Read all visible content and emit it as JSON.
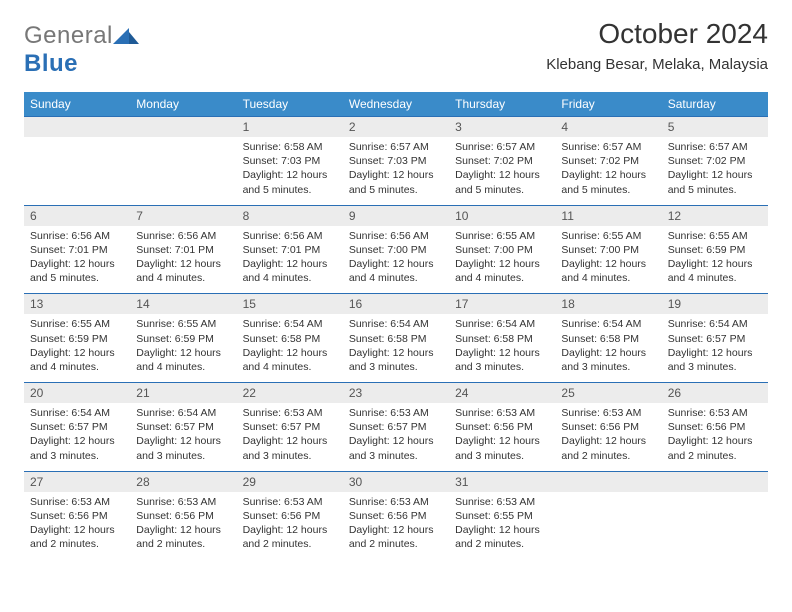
{
  "logo": {
    "textGray": "General",
    "textBlue": "Blue"
  },
  "title": "October 2024",
  "location": "Klebang Besar, Melaka, Malaysia",
  "colors": {
    "headerBg": "#3a8bc9",
    "headerText": "#ffffff",
    "numBg": "#ececec",
    "numText": "#555555",
    "bodyText": "#333333",
    "ruleColor": "#2a6fb5",
    "logoGray": "#777777",
    "logoBlue": "#2a6fb5"
  },
  "fonts": {
    "title_pt": 28,
    "location_pt": 15,
    "header_pt": 12,
    "daynum_pt": 12,
    "body_pt": 10.5
  },
  "daysOfWeek": [
    "Sunday",
    "Monday",
    "Tuesday",
    "Wednesday",
    "Thursday",
    "Friday",
    "Saturday"
  ],
  "weeks": [
    [
      {
        "num": "",
        "lines": []
      },
      {
        "num": "",
        "lines": []
      },
      {
        "num": "1",
        "lines": [
          "Sunrise: 6:58 AM",
          "Sunset: 7:03 PM",
          "Daylight: 12 hours and 5 minutes."
        ]
      },
      {
        "num": "2",
        "lines": [
          "Sunrise: 6:57 AM",
          "Sunset: 7:03 PM",
          "Daylight: 12 hours and 5 minutes."
        ]
      },
      {
        "num": "3",
        "lines": [
          "Sunrise: 6:57 AM",
          "Sunset: 7:02 PM",
          "Daylight: 12 hours and 5 minutes."
        ]
      },
      {
        "num": "4",
        "lines": [
          "Sunrise: 6:57 AM",
          "Sunset: 7:02 PM",
          "Daylight: 12 hours and 5 minutes."
        ]
      },
      {
        "num": "5",
        "lines": [
          "Sunrise: 6:57 AM",
          "Sunset: 7:02 PM",
          "Daylight: 12 hours and 5 minutes."
        ]
      }
    ],
    [
      {
        "num": "6",
        "lines": [
          "Sunrise: 6:56 AM",
          "Sunset: 7:01 PM",
          "Daylight: 12 hours and 5 minutes."
        ]
      },
      {
        "num": "7",
        "lines": [
          "Sunrise: 6:56 AM",
          "Sunset: 7:01 PM",
          "Daylight: 12 hours and 4 minutes."
        ]
      },
      {
        "num": "8",
        "lines": [
          "Sunrise: 6:56 AM",
          "Sunset: 7:01 PM",
          "Daylight: 12 hours and 4 minutes."
        ]
      },
      {
        "num": "9",
        "lines": [
          "Sunrise: 6:56 AM",
          "Sunset: 7:00 PM",
          "Daylight: 12 hours and 4 minutes."
        ]
      },
      {
        "num": "10",
        "lines": [
          "Sunrise: 6:55 AM",
          "Sunset: 7:00 PM",
          "Daylight: 12 hours and 4 minutes."
        ]
      },
      {
        "num": "11",
        "lines": [
          "Sunrise: 6:55 AM",
          "Sunset: 7:00 PM",
          "Daylight: 12 hours and 4 minutes."
        ]
      },
      {
        "num": "12",
        "lines": [
          "Sunrise: 6:55 AM",
          "Sunset: 6:59 PM",
          "Daylight: 12 hours and 4 minutes."
        ]
      }
    ],
    [
      {
        "num": "13",
        "lines": [
          "Sunrise: 6:55 AM",
          "Sunset: 6:59 PM",
          "Daylight: 12 hours and 4 minutes."
        ]
      },
      {
        "num": "14",
        "lines": [
          "Sunrise: 6:55 AM",
          "Sunset: 6:59 PM",
          "Daylight: 12 hours and 4 minutes."
        ]
      },
      {
        "num": "15",
        "lines": [
          "Sunrise: 6:54 AM",
          "Sunset: 6:58 PM",
          "Daylight: 12 hours and 4 minutes."
        ]
      },
      {
        "num": "16",
        "lines": [
          "Sunrise: 6:54 AM",
          "Sunset: 6:58 PM",
          "Daylight: 12 hours and 3 minutes."
        ]
      },
      {
        "num": "17",
        "lines": [
          "Sunrise: 6:54 AM",
          "Sunset: 6:58 PM",
          "Daylight: 12 hours and 3 minutes."
        ]
      },
      {
        "num": "18",
        "lines": [
          "Sunrise: 6:54 AM",
          "Sunset: 6:58 PM",
          "Daylight: 12 hours and 3 minutes."
        ]
      },
      {
        "num": "19",
        "lines": [
          "Sunrise: 6:54 AM",
          "Sunset: 6:57 PM",
          "Daylight: 12 hours and 3 minutes."
        ]
      }
    ],
    [
      {
        "num": "20",
        "lines": [
          "Sunrise: 6:54 AM",
          "Sunset: 6:57 PM",
          "Daylight: 12 hours and 3 minutes."
        ]
      },
      {
        "num": "21",
        "lines": [
          "Sunrise: 6:54 AM",
          "Sunset: 6:57 PM",
          "Daylight: 12 hours and 3 minutes."
        ]
      },
      {
        "num": "22",
        "lines": [
          "Sunrise: 6:53 AM",
          "Sunset: 6:57 PM",
          "Daylight: 12 hours and 3 minutes."
        ]
      },
      {
        "num": "23",
        "lines": [
          "Sunrise: 6:53 AM",
          "Sunset: 6:57 PM",
          "Daylight: 12 hours and 3 minutes."
        ]
      },
      {
        "num": "24",
        "lines": [
          "Sunrise: 6:53 AM",
          "Sunset: 6:56 PM",
          "Daylight: 12 hours and 3 minutes."
        ]
      },
      {
        "num": "25",
        "lines": [
          "Sunrise: 6:53 AM",
          "Sunset: 6:56 PM",
          "Daylight: 12 hours and 2 minutes."
        ]
      },
      {
        "num": "26",
        "lines": [
          "Sunrise: 6:53 AM",
          "Sunset: 6:56 PM",
          "Daylight: 12 hours and 2 minutes."
        ]
      }
    ],
    [
      {
        "num": "27",
        "lines": [
          "Sunrise: 6:53 AM",
          "Sunset: 6:56 PM",
          "Daylight: 12 hours and 2 minutes."
        ]
      },
      {
        "num": "28",
        "lines": [
          "Sunrise: 6:53 AM",
          "Sunset: 6:56 PM",
          "Daylight: 12 hours and 2 minutes."
        ]
      },
      {
        "num": "29",
        "lines": [
          "Sunrise: 6:53 AM",
          "Sunset: 6:56 PM",
          "Daylight: 12 hours and 2 minutes."
        ]
      },
      {
        "num": "30",
        "lines": [
          "Sunrise: 6:53 AM",
          "Sunset: 6:56 PM",
          "Daylight: 12 hours and 2 minutes."
        ]
      },
      {
        "num": "31",
        "lines": [
          "Sunrise: 6:53 AM",
          "Sunset: 6:55 PM",
          "Daylight: 12 hours and 2 minutes."
        ]
      },
      {
        "num": "",
        "lines": []
      },
      {
        "num": "",
        "lines": []
      }
    ]
  ]
}
